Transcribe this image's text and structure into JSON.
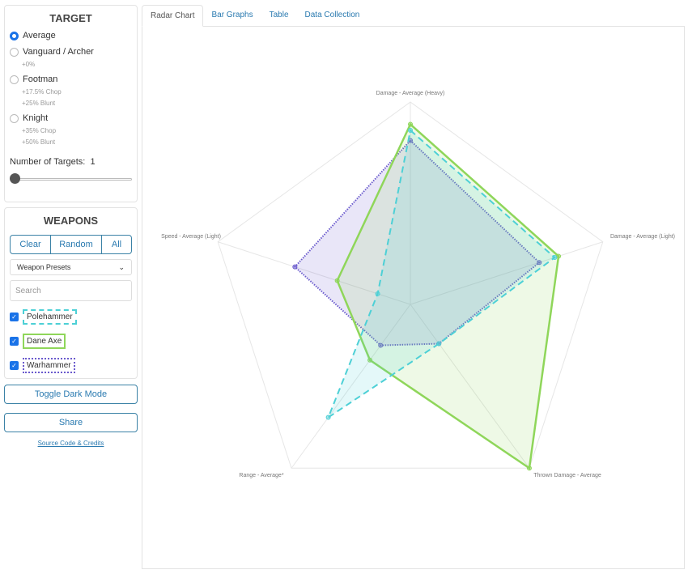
{
  "target": {
    "title": "TARGET",
    "options": [
      {
        "label": "Average",
        "selected": true,
        "notes": []
      },
      {
        "label": "Vanguard / Archer",
        "selected": false,
        "notes": [
          "+0%"
        ]
      },
      {
        "label": "Footman",
        "selected": false,
        "notes": [
          "+17.5% Chop",
          "+25% Blunt"
        ]
      },
      {
        "label": "Knight",
        "selected": false,
        "notes": [
          "+35% Chop",
          "+50% Blunt"
        ]
      }
    ],
    "num_targets_label": "Number of Targets:",
    "num_targets": "1",
    "slider_fraction": 0
  },
  "weapons": {
    "title": "WEAPONS",
    "clear": "Clear",
    "random": "Random",
    "all": "All",
    "presets": "Weapon Presets",
    "search_placeholder": "Search",
    "items": [
      {
        "label": "Polehammer",
        "checked": true
      },
      {
        "label": "Dane Axe",
        "checked": true
      },
      {
        "label": "Warhammer",
        "checked": true
      }
    ]
  },
  "toggle_dark": "Toggle Dark Mode",
  "share": "Share",
  "credits": "Source Code & Credits",
  "tabs": [
    "Radar Chart",
    "Bar Graphs",
    "Table",
    "Data Collection"
  ],
  "chart_data": {
    "type": "radar",
    "axes": [
      "Damage - Average (Heavy)",
      "Damage - Average (Light)",
      "Thrown Damage - Average",
      "Range - Average*",
      "Speed - Average (Light)"
    ],
    "range": [
      0,
      1
    ],
    "series": [
      {
        "name": "Polehammer",
        "color": "#4dd0d6",
        "style": "dashed",
        "values": [
          0.86,
          0.75,
          0.24,
          0.69,
          0.17
        ]
      },
      {
        "name": "Dane Axe",
        "color": "#8fd65a",
        "style": "solid",
        "values": [
          0.89,
          0.77,
          1.0,
          0.34,
          0.38
        ]
      },
      {
        "name": "Warhammer",
        "color": "#6a5acd",
        "style": "dotted",
        "values": [
          0.81,
          0.67,
          0.24,
          0.25,
          0.6
        ]
      }
    ]
  }
}
